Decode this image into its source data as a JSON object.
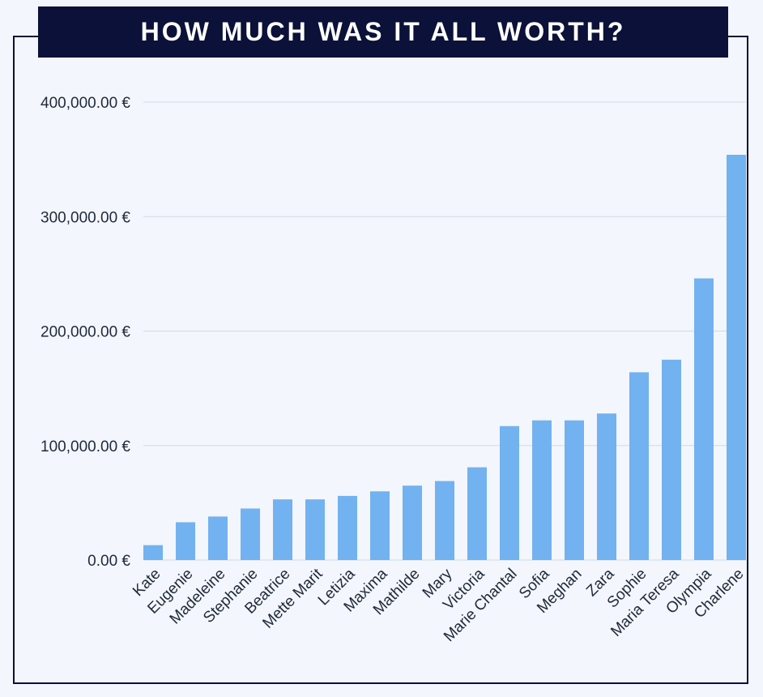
{
  "title": "HOW MUCH WAS IT ALL WORTH?",
  "colors": {
    "bar": "#72b2f0",
    "banner": "#0b1138",
    "grid": "#d3d9e3",
    "background": "#f3f6fc"
  },
  "chart_data": {
    "type": "bar",
    "title": "HOW MUCH WAS IT ALL WORTH?",
    "xlabel": "",
    "ylabel": "",
    "ylim": [
      0,
      400000
    ],
    "yticks": [
      0,
      100000,
      200000,
      300000,
      400000
    ],
    "ytick_labels": [
      "0.00 €",
      "100,000.00 €",
      "200,000.00 €",
      "300,000.00 €",
      "400,000.00 €"
    ],
    "grid": true,
    "categories": [
      "Kate",
      "Eugenie",
      "Madeleine",
      "Stephanie",
      "Beatrice",
      "Mette Marit",
      "Letizia",
      "Maxima",
      "Mathilde",
      "Mary",
      "Victoria",
      "Marie Chantal",
      "Sofia",
      "Meghan",
      "Zara",
      "Sophie",
      "Maria Teresa",
      "Olympia",
      "Charlene"
    ],
    "values": [
      13000,
      33000,
      38000,
      45000,
      53000,
      53000,
      56000,
      60000,
      65000,
      69000,
      81000,
      117000,
      122000,
      122000,
      128000,
      164000,
      175000,
      246000,
      354000
    ]
  }
}
